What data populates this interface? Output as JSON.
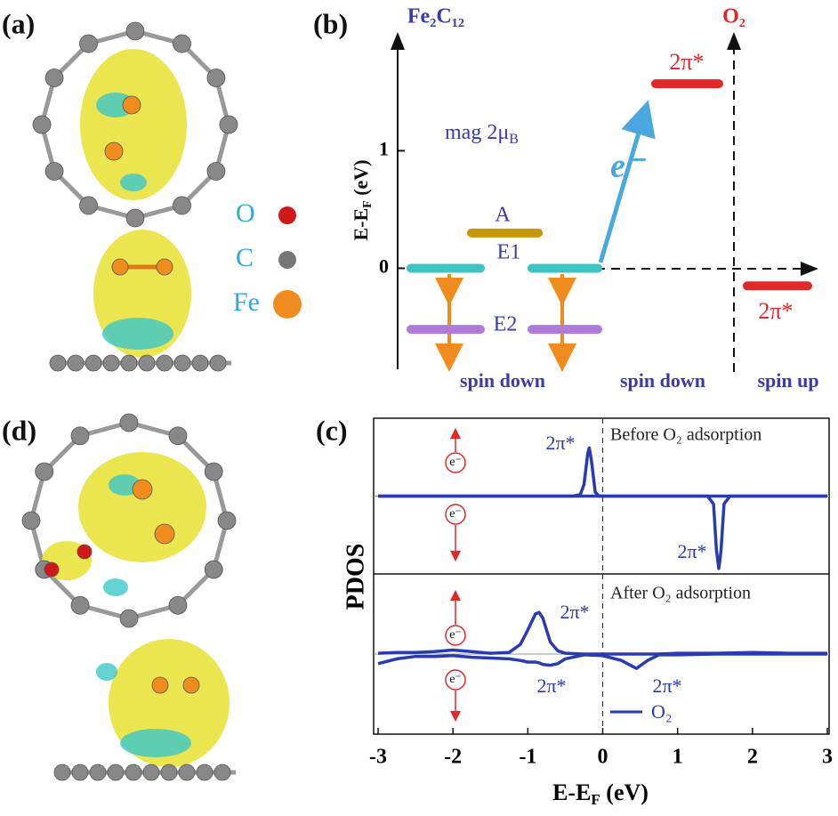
{
  "figure": {
    "panel_labels": [
      "(a)",
      "(b)",
      "(c)",
      "(d)"
    ],
    "atom_legend": [
      "O",
      "C",
      "Fe"
    ]
  },
  "chart_data": [
    {
      "type": "levels",
      "title_left": "Fe₂C₁₂",
      "title_right": "O₂",
      "ylabel": [
        "E-E",
        "F",
        " (eV)"
      ],
      "ylim": [
        -0.86,
        1.98
      ],
      "yticks": [
        0,
        1
      ],
      "annotation": [
        "mag 2μ",
        "B"
      ],
      "electron": "e⁻",
      "fe_levels": [
        {
          "name": "E1",
          "value": 0,
          "color": "#3cc4c4"
        },
        {
          "name": "A",
          "value": 0.3,
          "color": "#c8960a"
        },
        {
          "name": "E2",
          "value": -0.52,
          "color": "#b07ad8"
        }
      ],
      "o2_levels": [
        {
          "name": "2π*",
          "value": 1.57,
          "color": "#e02828"
        },
        {
          "name": "2π*",
          "value": -0.15,
          "color": "#e02828"
        }
      ],
      "spin_labels": [
        "spin down",
        "spin down",
        "spin up"
      ]
    },
    {
      "type": "line",
      "title": "Before O₂ adsorption",
      "xlim": [
        -3,
        3
      ],
      "ylim": [
        -1,
        1
      ],
      "x": [
        -3,
        -0.4,
        -0.3,
        -0.25,
        -0.2,
        -0.18,
        -0.15,
        -0.1,
        -0.05,
        0,
        1.4,
        1.48,
        1.52,
        1.55,
        1.58,
        1.62,
        1.7,
        3
      ],
      "series": [
        {
          "color": "#2a3ab0",
          "values": [
            0,
            0,
            0.02,
            0.15,
            0.55,
            0.62,
            0.45,
            0.05,
            0,
            0,
            0,
            0,
            0,
            0,
            0,
            0,
            0,
            0
          ]
        },
        {
          "color": "#2a3ab0",
          "values": [
            0,
            0,
            0,
            0,
            0,
            0,
            0,
            0,
            0,
            0,
            0,
            -0.1,
            -0.7,
            -0.93,
            -0.7,
            -0.1,
            0,
            0
          ]
        }
      ],
      "annotations": [
        "2π*",
        "2π*"
      ],
      "spin_labels": [
        "e⁻",
        "e⁻"
      ]
    },
    {
      "type": "line",
      "title": "After O₂ adsorption",
      "xlim": [
        -3,
        3
      ],
      "ylim": [
        -1,
        1
      ],
      "xticks": [
        -3,
        -2,
        -1,
        0,
        1,
        2,
        3
      ],
      "xlabel": [
        "E-E",
        "F",
        " (eV)"
      ],
      "ylabel": "PDOS",
      "legend": "O₂",
      "x": [
        -3,
        -2.75,
        -2.5,
        -2.25,
        -2,
        -1.75,
        -1.5,
        -1.25,
        -1.1,
        -1,
        -0.9,
        -0.85,
        -0.8,
        -0.7,
        -0.6,
        -0.5,
        -0.25,
        0,
        0.25,
        0.45,
        0.6,
        0.75,
        1,
        1.5,
        2,
        2.5,
        3
      ],
      "series": [
        {
          "color": "#2a3ab0",
          "values": [
            0.01,
            0.02,
            0.02,
            0.03,
            0.05,
            0.03,
            0.01,
            0.02,
            0.12,
            0.3,
            0.5,
            0.52,
            0.45,
            0.15,
            0.04,
            0.01,
            0,
            0,
            0,
            0,
            0,
            0,
            0.01,
            0.01,
            0.02,
            0.01,
            0.01
          ]
        },
        {
          "color": "#2a3ab0",
          "values": [
            -0.12,
            -0.06,
            -0.03,
            -0.03,
            -0.02,
            -0.04,
            -0.05,
            -0.06,
            -0.08,
            -0.1,
            -0.1,
            -0.11,
            -0.13,
            -0.14,
            -0.12,
            -0.06,
            -0.01,
            -0.02,
            -0.08,
            -0.18,
            -0.08,
            -0.01,
            -0.01,
            0,
            0,
            0,
            0
          ]
        }
      ],
      "annotations": [
        "2π*",
        "2π*",
        "2π*"
      ],
      "spin_labels": [
        "e⁻",
        "e⁻"
      ]
    }
  ]
}
